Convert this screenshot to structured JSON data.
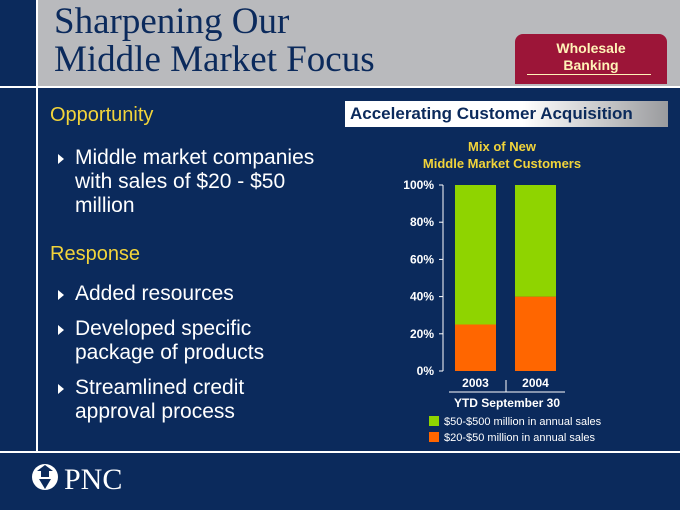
{
  "slide": {
    "title_line1": "Sharpening Our",
    "title_line2": "Middle Market Focus",
    "badge_line1": "Wholesale",
    "badge_line2": "Banking"
  },
  "opportunity": {
    "heading": "Opportunity",
    "items": [
      "Middle market companies with sales of $20 - $50 million"
    ]
  },
  "response": {
    "heading": "Response",
    "items": [
      "Added resources",
      "Developed specific package of products",
      "Streamlined credit approval process"
    ]
  },
  "chart_banner": "Accelerating Customer Acquisition",
  "logo_text": "PNC",
  "colors": {
    "navy": "#0b2a5c",
    "gray": "#b9babd",
    "green": "#8fd400",
    "orange": "#ff6600",
    "yellow": "#f2d43a",
    "burgundy": "#9c1538",
    "cream": "#fff3b8"
  },
  "chart_data": {
    "type": "bar",
    "stacked": true,
    "title": "Mix of New Middle Market Customers",
    "categories": [
      "2003",
      "2004"
    ],
    "xlabel": "YTD September 30",
    "ylabel": "",
    "ylim": [
      0,
      100
    ],
    "yticks": [
      "0%",
      "20%",
      "40%",
      "60%",
      "80%",
      "100%"
    ],
    "grid": false,
    "legend_position": "bottom",
    "series": [
      {
        "name": "$20-$50 million in annual sales",
        "values": [
          25,
          40
        ],
        "color": "#ff6600"
      },
      {
        "name": "$50-$500 million in annual sales",
        "values": [
          75,
          60
        ],
        "color": "#8fd400"
      }
    ]
  }
}
